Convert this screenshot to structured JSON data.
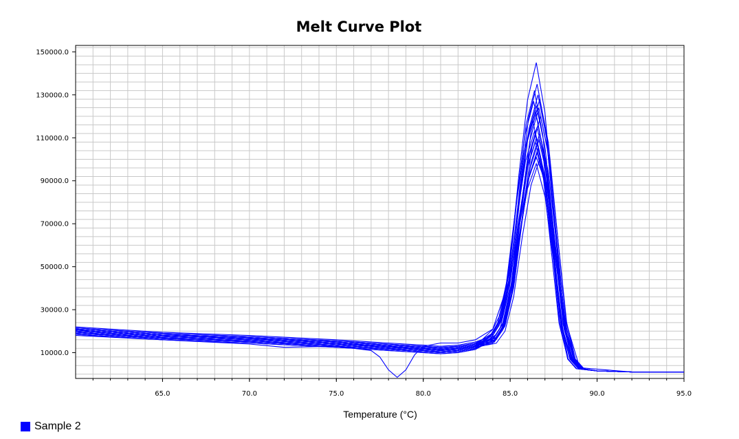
{
  "chart_data": {
    "type": "line",
    "title": "Melt Curve Plot",
    "xlabel": "Temperature (°C)",
    "ylabel": "",
    "xlim": [
      60.0,
      95.0
    ],
    "ylim": [
      -2000,
      153000
    ],
    "x_ticks": [
      65.0,
      70.0,
      75.0,
      80.0,
      85.0,
      90.0,
      95.0
    ],
    "x_tick_labels": [
      "65.0",
      "70.0",
      "75.0",
      "80.0",
      "85.0",
      "90.0",
      "95.0"
    ],
    "y_ticks": [
      10000,
      30000,
      50000,
      70000,
      90000,
      110000,
      130000,
      150000
    ],
    "y_tick_labels": [
      "10000.0",
      "30000.0",
      "50000.0",
      "70000.0",
      "90000.0",
      "110000.0",
      "130000.0",
      "150000.0"
    ],
    "grid": true,
    "legend_position": "bottom-left",
    "series_color": "#0000ff",
    "curve_template": {
      "x": [
        60.0,
        65.0,
        70.0,
        75.0,
        78.0,
        80.0,
        81.0,
        82.0,
        83.0,
        84.0,
        84.5,
        85.0,
        85.5,
        86.0,
        86.5,
        87.0,
        87.5,
        88.0,
        88.5,
        89.0,
        90.0,
        92.0,
        95.0
      ],
      "y": [
        20000,
        17500,
        16000,
        14000,
        12500,
        11500,
        11000,
        11500,
        13000,
        18000,
        25000,
        45000,
        80000,
        110000,
        125000,
        105000,
        65000,
        25000,
        7000,
        2500,
        1500,
        1000,
        1000
      ]
    },
    "curves": [
      {
        "peak": 145000,
        "shift": 0.0,
        "base": 0,
        "width": 1.0
      },
      {
        "peak": 135000,
        "shift": 0.05,
        "base": 1000,
        "width": 1.0
      },
      {
        "peak": 132000,
        "shift": -0.1,
        "base": -1000,
        "width": 0.97
      },
      {
        "peak": 130000,
        "shift": 0.1,
        "base": 500,
        "width": 1.02
      },
      {
        "peak": 128000,
        "shift": 0.2,
        "base": -500,
        "width": 1.0
      },
      {
        "peak": 127000,
        "shift": -0.15,
        "base": 1500,
        "width": 0.98
      },
      {
        "peak": 125000,
        "shift": 0.0,
        "base": 0,
        "width": 1.03
      },
      {
        "peak": 124000,
        "shift": 0.15,
        "base": -1500,
        "width": 1.0
      },
      {
        "peak": 122000,
        "shift": -0.05,
        "base": 2000,
        "width": 0.99
      },
      {
        "peak": 120000,
        "shift": 0.25,
        "base": 500,
        "width": 1.0
      },
      {
        "peak": 118000,
        "shift": -0.2,
        "base": -1000,
        "width": 1.01
      },
      {
        "peak": 116000,
        "shift": 0.1,
        "base": 1000,
        "width": 0.98
      },
      {
        "peak": 115000,
        "shift": 0.05,
        "base": -500,
        "width": 1.0
      },
      {
        "peak": 113000,
        "shift": -0.1,
        "base": 0,
        "width": 1.02
      },
      {
        "peak": 112000,
        "shift": 0.2,
        "base": 1500,
        "width": 1.0
      },
      {
        "peak": 110000,
        "shift": 0.0,
        "base": -1000,
        "width": 0.97
      },
      {
        "peak": 109000,
        "shift": 0.15,
        "base": 500,
        "width": 1.0
      },
      {
        "peak": 108000,
        "shift": -0.05,
        "base": -1500,
        "width": 1.01
      },
      {
        "peak": 105000,
        "shift": 0.1,
        "base": 1000,
        "width": 1.0
      },
      {
        "peak": 103000,
        "shift": 0.05,
        "base": 0,
        "width": 0.99
      },
      {
        "peak": 100000,
        "shift": 0.2,
        "base": -500,
        "width": 1.0
      },
      {
        "peak": 98000,
        "shift": 0.0,
        "base": 500,
        "width": 1.02
      }
    ],
    "anomaly_curve": {
      "x": [
        60.0,
        65.0,
        70.0,
        72.0,
        75.0,
        77.0,
        77.5,
        78.0,
        78.5,
        79.0,
        79.5,
        80.0,
        81.0,
        82.0,
        83.0,
        84.0,
        85.0,
        86.0,
        86.5,
        87.0,
        88.0,
        89.0,
        92.0,
        95.0
      ],
      "y": [
        18000,
        16000,
        14000,
        12500,
        13000,
        11000,
        8000,
        2000,
        -1500,
        2000,
        9000,
        13000,
        14500,
        14500,
        16000,
        21000,
        45000,
        90000,
        101000,
        90000,
        30000,
        3000,
        1000,
        1000
      ]
    },
    "series": [
      {
        "name": "Sample 2",
        "color": "#0000ff"
      }
    ]
  }
}
